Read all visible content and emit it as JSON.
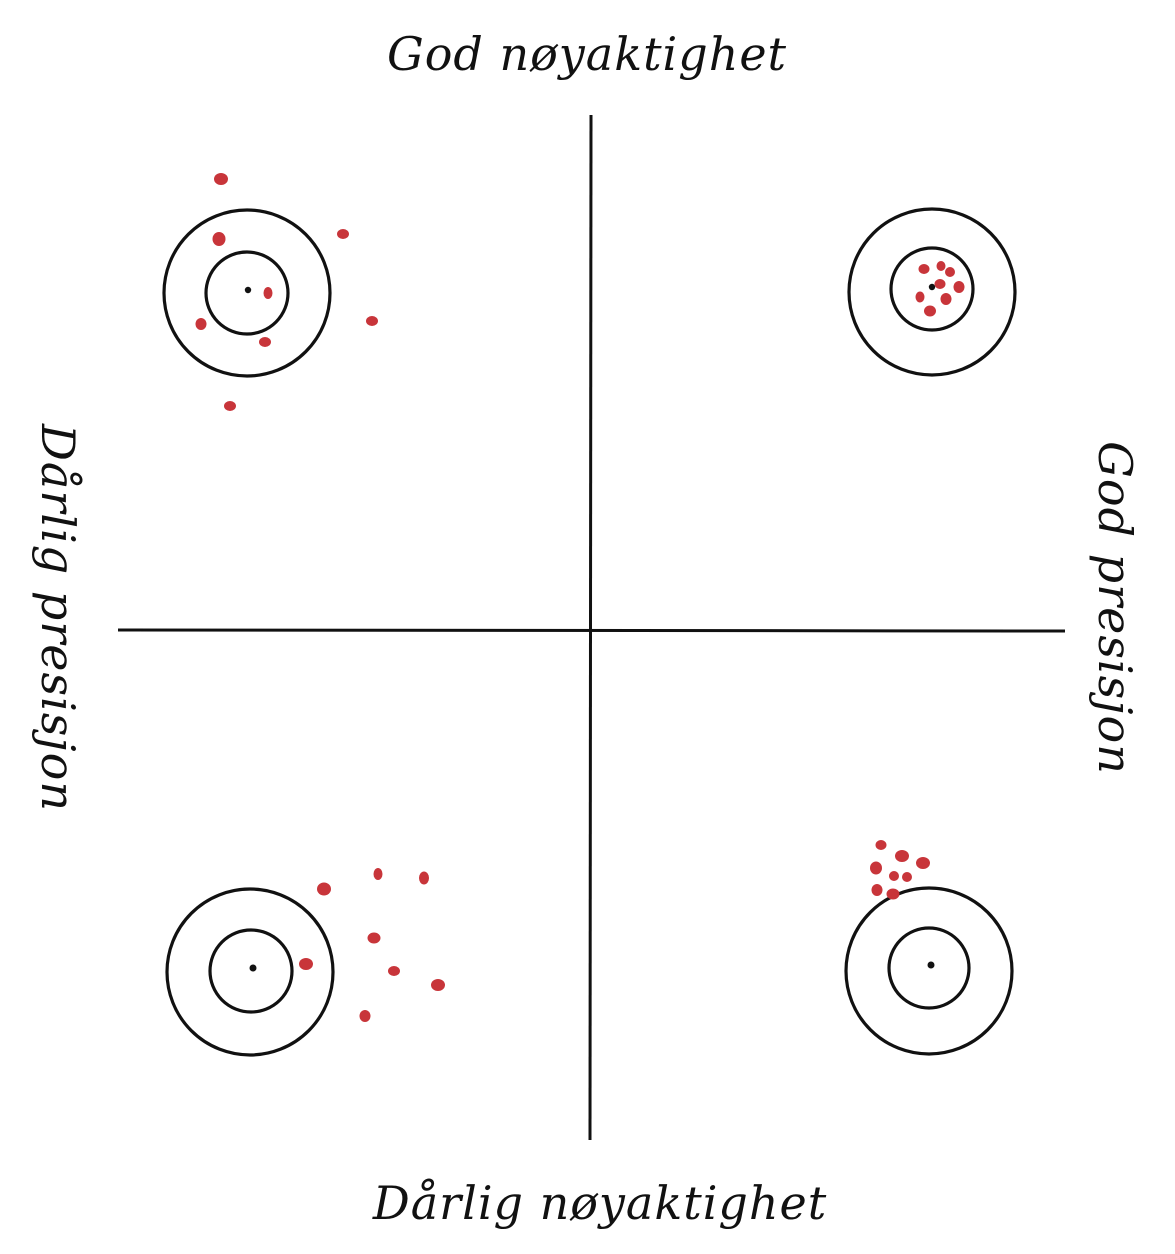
{
  "labels": {
    "top": "God nøyaktighet",
    "bottom": "Dårlig nøyaktighet",
    "left": "Dårlig presisjon",
    "right": "God presisjon"
  },
  "colors": {
    "ink": "#111111",
    "hit": "#c8353a",
    "background": "#ffffff"
  }
}
